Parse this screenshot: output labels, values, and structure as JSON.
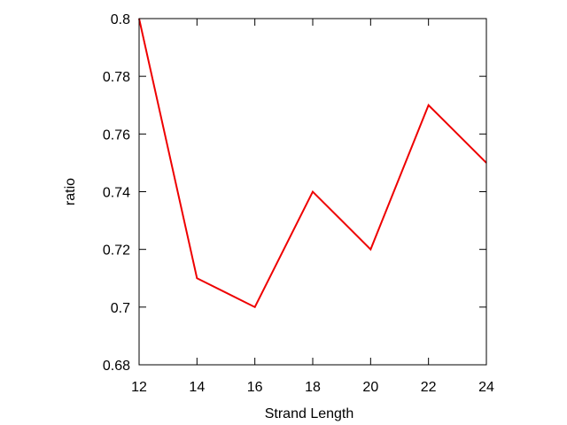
{
  "chart_data": {
    "type": "line",
    "title": "",
    "xlabel": "Strand Length",
    "ylabel": "ratio",
    "xlim": [
      12,
      24
    ],
    "ylim": [
      0.68,
      0.8
    ],
    "xticks": [
      12,
      14,
      16,
      18,
      20,
      22,
      24
    ],
    "yticks": [
      0.68,
      0.7,
      0.72,
      0.74,
      0.76,
      0.78,
      0.8
    ],
    "xtick_labels": [
      "12",
      "14",
      "16",
      "18",
      "20",
      "22",
      "24"
    ],
    "ytick_labels": [
      "0.68",
      "0.7",
      "0.72",
      "0.74",
      "0.76",
      "0.78",
      "0.8"
    ],
    "grid": false,
    "series": [
      {
        "color": "#ee0000",
        "x": [
          12,
          14,
          16,
          18,
          20,
          22,
          24
        ],
        "y": [
          0.8,
          0.71,
          0.7,
          0.74,
          0.72,
          0.77,
          0.75
        ]
      }
    ]
  }
}
